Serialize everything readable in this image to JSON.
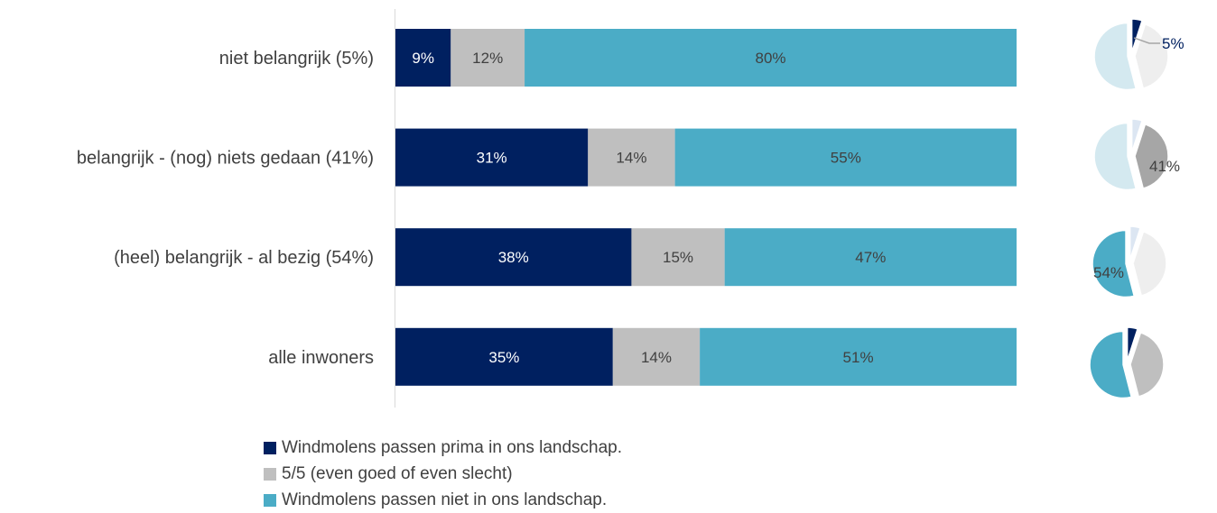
{
  "chart_data": {
    "type": "bar",
    "orientation": "horizontal",
    "stacked": "100%",
    "categories": [
      "niet belangrijk (5%)",
      "belangrijk - (nog)  niets gedaan (41%)",
      "(heel) belangrijk - al bezig (54%)",
      "alle inwoners"
    ],
    "series": [
      {
        "name": "Windmolens passen prima in ons landschap.",
        "color": "#002060",
        "label_color": "#ffffff",
        "values": [
          9,
          31,
          38,
          35
        ],
        "labels": [
          "9%",
          "31%",
          "38%",
          "35%"
        ]
      },
      {
        "name": "5/5 (even goed of even slecht)",
        "color": "#bfbfbf",
        "label_color": "#404040",
        "values": [
          12,
          14,
          15,
          14
        ],
        "labels": [
          "12%",
          "14%",
          "15%",
          "14%"
        ]
      },
      {
        "name": "Windmolens passen niet in ons landschap.",
        "color": "#4bacc6",
        "label_color": "#404040",
        "values": [
          80,
          55,
          47,
          51
        ],
        "labels": [
          "80%",
          "55%",
          "47%",
          "51%"
        ]
      }
    ],
    "pies": [
      {
        "category": "niet belangrijk (5%)",
        "values": [
          5,
          41,
          54
        ],
        "highlight": 0,
        "label": "5%"
      },
      {
        "category": "belangrijk - (nog)  niets gedaan (41%)",
        "values": [
          5,
          41,
          54
        ],
        "highlight": 1,
        "label": "41%"
      },
      {
        "category": "(heel) belangrijk - al bezig (54%)",
        "values": [
          5,
          41,
          54
        ],
        "highlight": 2,
        "label": "54%"
      },
      {
        "category": "alle inwoners",
        "values": [
          5,
          41,
          54
        ],
        "highlight": null,
        "label": ""
      }
    ],
    "pie_colors": {
      "full": [
        "#002060",
        "#a6a6a6",
        "#4bacc6"
      ],
      "faded": [
        "#dce6f2",
        "#eeeeee",
        "#d4e9f0"
      ],
      "all": [
        "#002060",
        "#bfbfbf",
        "#4bacc6"
      ]
    },
    "xlim": [
      0,
      100
    ],
    "legend_position": "bottom"
  }
}
